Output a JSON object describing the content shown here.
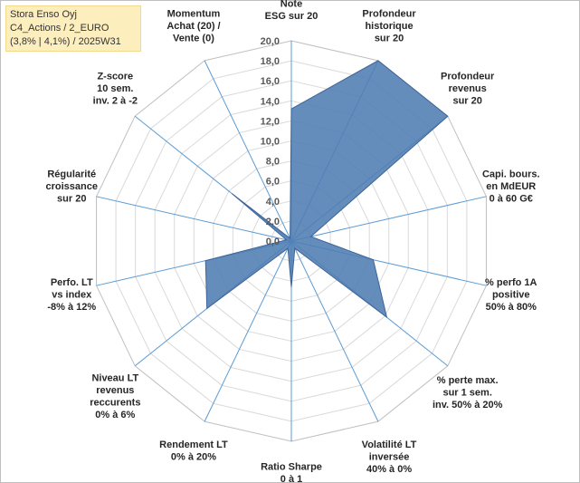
{
  "info": {
    "line1": "Stora Enso Oyj",
    "line2": "C4_Actions / 2_EURO",
    "line3": "(3,8% | 4,1%) / 2025W31"
  },
  "chart_data": {
    "type": "radar",
    "title": "",
    "rmin": 0,
    "rmax": 20,
    "tick_step": 2,
    "tick_labels": [
      "0,0",
      "2,0",
      "4,0",
      "6,0",
      "8,0",
      "10,0",
      "12,0",
      "14,0",
      "16,0",
      "18,0",
      "20,0"
    ],
    "grid": true,
    "colors": {
      "fill": "#4f7db3",
      "stroke": "#3d6496",
      "grid": "#d9d9d9",
      "spoke": "#5b9bd5"
    },
    "categories": [
      [
        "Note",
        "ESG sur 20"
      ],
      [
        "Profondeur",
        "historique",
        "sur 20"
      ],
      [
        "Profondeur",
        "revenus",
        "sur 20"
      ],
      [
        "Capi. bours.",
        "en MdEUR",
        "0 à 60 G€"
      ],
      [
        "% perfo 1A",
        "positive",
        "50% à 80%"
      ],
      [
        "% perte max.",
        "sur 1 sem.",
        "inv. 50% à 20%"
      ],
      [
        "Volatilité LT",
        "inversée",
        "40% à 0%"
      ],
      [
        "Ratio Sharpe",
        "0 à 1"
      ],
      [
        "Rendement LT",
        "0% à 20%"
      ],
      [
        "Niveau LT",
        "revenus",
        "reccurents",
        "0% à 6%"
      ],
      [
        "Perfo. LT",
        "vs index",
        "-8% à 12%"
      ],
      [
        "Régularité",
        "croissance",
        "sur 20"
      ],
      [
        "Z-score",
        "10 sem.",
        "inv. 2 à -2"
      ],
      [
        "Momentum",
        "Achat (20) /",
        "Vente (0)"
      ]
    ],
    "values": [
      13.2,
      20.0,
      20.0,
      2.0,
      8.4,
      12.2,
      0.8,
      4.6,
      0.8,
      10.8,
      8.8,
      0.5,
      7.6,
      0.3
    ]
  }
}
